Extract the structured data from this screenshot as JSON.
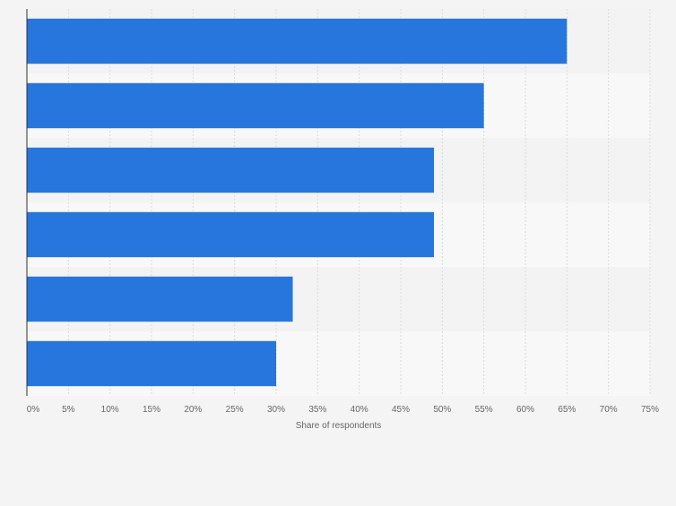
{
  "chart_data": {
    "type": "bar",
    "orientation": "horizontal",
    "categories": [
      "",
      "",
      "",
      "",
      "",
      ""
    ],
    "values": [
      65,
      55,
      49,
      49,
      32,
      30
    ],
    "xlabel": "Share of respondents",
    "ylabel": "",
    "xlim": [
      0,
      75
    ],
    "x_ticks": [
      0,
      5,
      10,
      15,
      20,
      25,
      30,
      35,
      40,
      45,
      50,
      55,
      60,
      65,
      70,
      75
    ],
    "x_tick_suffix": "%",
    "grid": true,
    "grid_style": "dashed-vertical",
    "legend": "none",
    "colors": {
      "bar": "#2776dd",
      "band_dark": "#f3f3f3",
      "band_light": "#f8f8f8",
      "background": "#f4f4f4",
      "grid": "#dcdcdc",
      "axis": "#333333",
      "text": "#666666"
    }
  }
}
